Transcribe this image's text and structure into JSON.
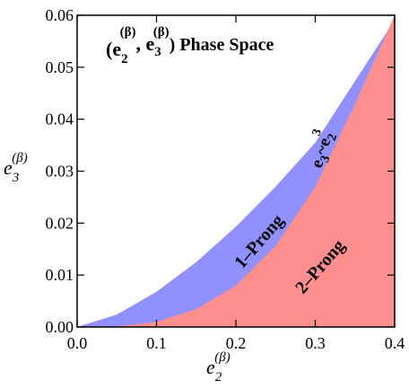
{
  "chart_data": {
    "type": "area",
    "title_parts": {
      "open": "(e",
      "e2_sub": "2",
      "e2_sup": "(β)",
      "comma": ", e",
      "e3_sub": "3",
      "e3_sup": "(β)",
      "close": ") Phase Space"
    },
    "xlabel": {
      "base": "e",
      "sub": "2",
      "sup": "(β)"
    },
    "ylabel": {
      "base": "e",
      "sub": "3",
      "sup": "(β)"
    },
    "xlim": [
      0.0,
      0.4
    ],
    "ylim": [
      0.0,
      0.06
    ],
    "x_ticks": [
      "0.0",
      "0.1",
      "0.2",
      "0.3",
      "0.4"
    ],
    "y_ticks": [
      "0.00",
      "0.01",
      "0.02",
      "0.03",
      "0.04",
      "0.05",
      "0.06"
    ],
    "series": [
      {
        "label": "1–Prong",
        "color": "#9090ff",
        "boundary": "upper",
        "x": [
          0.0,
          0.05,
          0.1,
          0.15,
          0.2,
          0.25,
          0.3,
          0.35
        ],
        "y": [
          0.0,
          0.0024,
          0.0068,
          0.0125,
          0.0193,
          0.027,
          0.0355,
          0.0473
        ]
      },
      {
        "label": "2–Prong",
        "color": "#ff8e8e",
        "boundary": "lower",
        "x": [
          0.0,
          0.05,
          0.1,
          0.15,
          0.2,
          0.25,
          0.3,
          0.35,
          0.4
        ],
        "y": [
          0.0,
          0.0001,
          0.001,
          0.0034,
          0.008,
          0.0156,
          0.027,
          0.0429,
          0.06
        ]
      }
    ],
    "boundary_label": {
      "base": "e",
      "sub": "3",
      "tilde": "~e",
      "exp_base": "2",
      "exp": "3"
    },
    "grid": false
  }
}
